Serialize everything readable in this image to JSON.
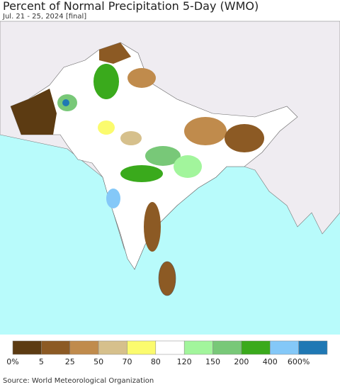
{
  "header": {
    "title": "Percent of Normal Precipitation 5-Day (WMO)",
    "subtitle": "Jul. 21 - 25, 2024 [final]"
  },
  "legend": {
    "colors": [
      "#5c3b12",
      "#8c5a24",
      "#c08b4c",
      "#d6c08c",
      "#fbfb6e",
      "#ffffff",
      "#a2f59c",
      "#78c878",
      "#3aaa1c",
      "#84c8f8",
      "#1f78b4"
    ],
    "labels": [
      "0%",
      "5",
      "25",
      "50",
      "70",
      "80",
      "120",
      "150",
      "200",
      "400",
      "600%"
    ]
  },
  "footer": {
    "source": "Source: World Meteorological Organization"
  }
}
